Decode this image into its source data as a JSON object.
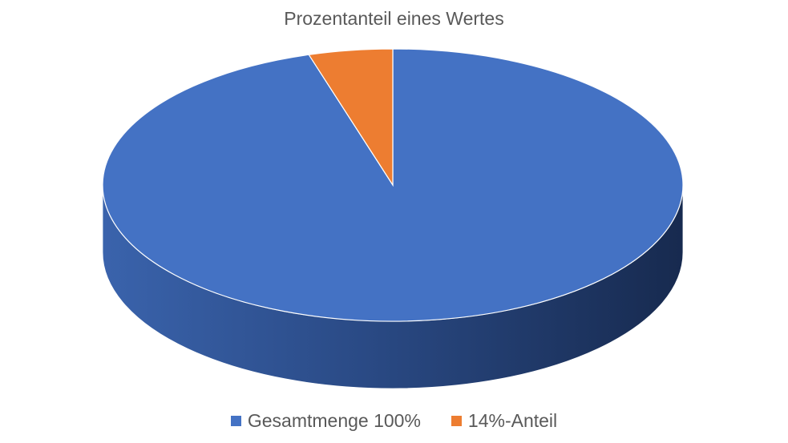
{
  "chart_data": {
    "type": "pie",
    "title": "Prozentanteil eines Wertes",
    "style": "3d",
    "legend_position": "bottom",
    "slices": [
      {
        "name": "Gesamtmenge 100%",
        "value": 100,
        "color": "#4472C4"
      },
      {
        "name": "14%-Anteil",
        "value": 4.9,
        "color": "#ED7D31"
      }
    ]
  }
}
